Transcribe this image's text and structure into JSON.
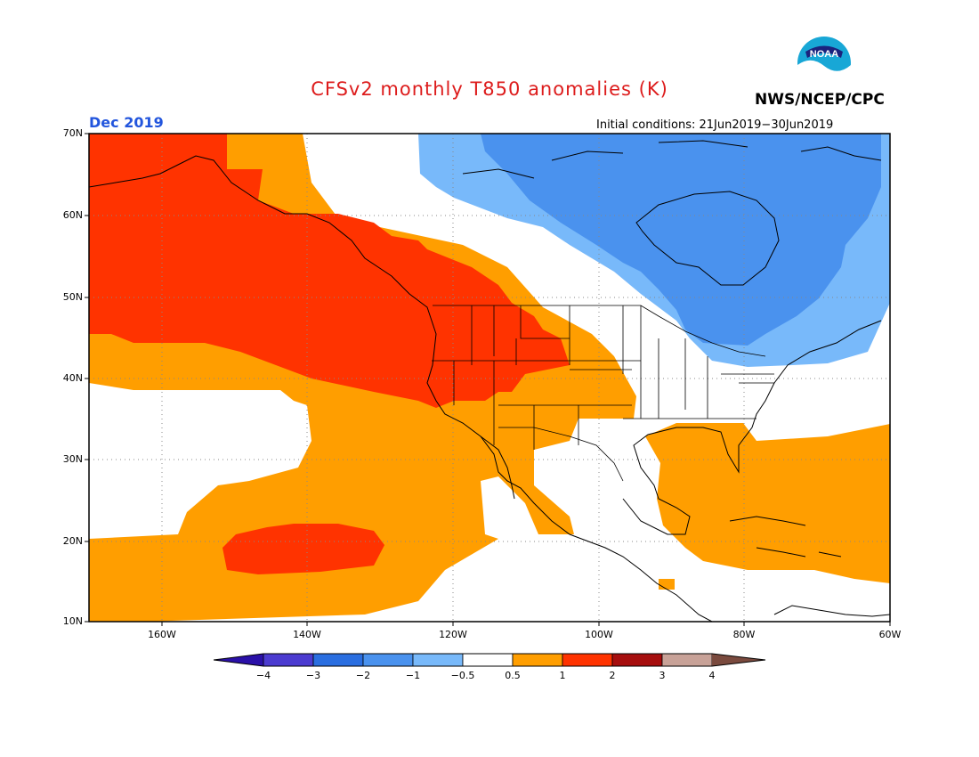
{
  "header": {
    "title": "CFSv2 monthly T850 anomalies (K)",
    "agency": "NWS/NCEP/CPC",
    "month": "Dec 2019",
    "initial_conditions": "Initial conditions: 21Jun2019−30Jun2019",
    "logo_text": "NOAA"
  },
  "colors": {
    "title": "#dd1c1c",
    "month": "#2255dd",
    "strong_warm": "#ff3300",
    "warm": "#ff9e00",
    "cool": "#78b9fa",
    "cold": "#4a92ee",
    "map_border": "#000000",
    "grid": "#888888"
  },
  "map": {
    "lat_labels": [
      "70N",
      "60N",
      "50N",
      "40N",
      "30N",
      "20N",
      "10N"
    ],
    "lon_labels": [
      "160W",
      "140W",
      "120W",
      "100W",
      "80W",
      "60W"
    ]
  },
  "colorbar": {
    "labels": [
      "−4",
      "−3",
      "−2",
      "−1",
      "−0.5",
      "0.5",
      "1",
      "2",
      "3",
      "4"
    ],
    "colors": [
      "#2a10a8",
      "#4b3bd0",
      "#2a6ee0",
      "#4a92ee",
      "#78b9fa",
      "#ffffff",
      "#ff9e00",
      "#ff3300",
      "#a60e0e",
      "#c8a298",
      "#7a4a3e"
    ]
  }
}
